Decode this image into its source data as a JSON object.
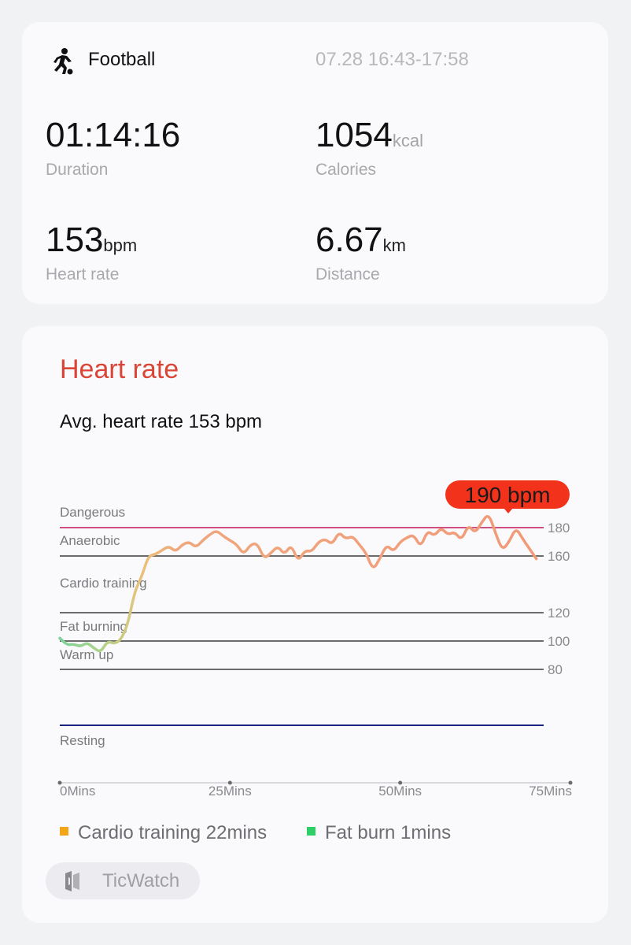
{
  "workout": {
    "sport": "Football",
    "sport_icon": "soccer-player-icon",
    "time_range": "07.28 16:43-17:58"
  },
  "metrics": {
    "duration": {
      "value": "01:14:16",
      "unit": "",
      "label": "Duration"
    },
    "calories": {
      "value": "1054",
      "unit": "kcal",
      "label": "Calories"
    },
    "heart_rate": {
      "value": "153",
      "unit": "bpm",
      "label": "Heart rate"
    },
    "distance": {
      "value": "6.67",
      "unit": "km",
      "label": "Distance"
    }
  },
  "heart_rate_card": {
    "title": "Heart rate",
    "avg_text": "Avg. heart rate 153 bpm",
    "title_color": "#d94536"
  },
  "chart_data": {
    "type": "line",
    "y_unit": "bpm",
    "max_callout": "190 bpm",
    "max_value": 190,
    "x_ticks": [
      "0Mins",
      "25Mins",
      "50Mins",
      "75Mins"
    ],
    "x_range": [
      0,
      75
    ],
    "zones": [
      {
        "name": "Dangerous",
        "threshold": 180,
        "color": "#c2185b"
      },
      {
        "name": "Anaerobic",
        "threshold": 160,
        "color": "#6b6b6b"
      },
      {
        "name": "Cardio training",
        "threshold": 120,
        "color": "#6b6b6b"
      },
      {
        "name": "Fat burning",
        "threshold": 100,
        "color": "#6b6b6b"
      },
      {
        "name": "Warm up",
        "threshold": 80,
        "color": "#6b6b6b"
      },
      {
        "name": "Resting",
        "threshold": null,
        "color": "#1a237e"
      }
    ],
    "y_ticks": [
      "180",
      "160",
      "120",
      "100",
      "80"
    ],
    "series": [
      {
        "points": [
          [
            0,
            102
          ],
          [
            1,
            97
          ],
          [
            2,
            98
          ],
          [
            3,
            96
          ],
          [
            4,
            99
          ],
          [
            5,
            95
          ],
          [
            6,
            92
          ],
          [
            7,
            100
          ],
          [
            8,
            98
          ],
          [
            9,
            101
          ],
          [
            10,
            112
          ],
          [
            11,
            135
          ],
          [
            12,
            145
          ],
          [
            13,
            160
          ],
          [
            14,
            161
          ],
          [
            15,
            164
          ],
          [
            16,
            167
          ],
          [
            17,
            163
          ],
          [
            18,
            168
          ],
          [
            19,
            170
          ],
          [
            20,
            166
          ],
          [
            21,
            171
          ],
          [
            22,
            175
          ],
          [
            23,
            178
          ],
          [
            24,
            174
          ],
          [
            25,
            171
          ],
          [
            26,
            168
          ],
          [
            27,
            161
          ],
          [
            28,
            168
          ],
          [
            29,
            169
          ],
          [
            30,
            158
          ],
          [
            31,
            162
          ],
          [
            32,
            167
          ],
          [
            33,
            161
          ],
          [
            34,
            168
          ],
          [
            35,
            156
          ],
          [
            36,
            164
          ],
          [
            37,
            163
          ],
          [
            38,
            170
          ],
          [
            39,
            172
          ],
          [
            40,
            168
          ],
          [
            41,
            177
          ],
          [
            42,
            172
          ],
          [
            43,
            174
          ],
          [
            44,
            168
          ],
          [
            45,
            162
          ],
          [
            46,
            150
          ],
          [
            47,
            158
          ],
          [
            48,
            168
          ],
          [
            49,
            163
          ],
          [
            50,
            170
          ],
          [
            51,
            173
          ],
          [
            52,
            175
          ],
          [
            53,
            166
          ],
          [
            54,
            178
          ],
          [
            55,
            174
          ],
          [
            56,
            180
          ],
          [
            57,
            175
          ],
          [
            58,
            177
          ],
          [
            59,
            171
          ],
          [
            60,
            182
          ],
          [
            61,
            176
          ],
          [
            62,
            184
          ],
          [
            63,
            190
          ],
          [
            64,
            176
          ],
          [
            65,
            164
          ],
          [
            66,
            170
          ],
          [
            67,
            180
          ],
          [
            68,
            172
          ],
          [
            69,
            165
          ],
          [
            70,
            158
          ]
        ]
      }
    ],
    "colors": {
      "warmup": "#7ed19c",
      "fat_burn": "#a9d48b",
      "cardio": "#e9b06a",
      "anaerobic": "#f0a07a",
      "callout": "#f3321c"
    }
  },
  "legend": [
    {
      "label": "Cardio training 22mins",
      "color": "#f2a516"
    },
    {
      "label": "Fat burn 1mins",
      "color": "#2fcf68"
    }
  ],
  "device": {
    "name": "TicWatch",
    "icon": "watch-icon"
  }
}
